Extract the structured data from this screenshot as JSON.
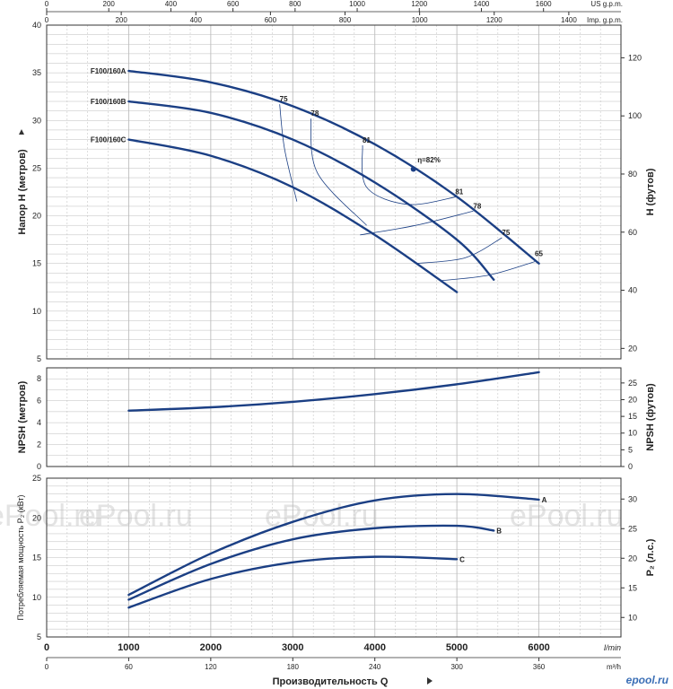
{
  "chart_data": [
    {
      "id": "head",
      "type": "line",
      "ylabel": "Напор Н (метров)",
      "y2label": "Н (футов)",
      "ylim": [
        5,
        40
      ],
      "y_ticks": [
        5,
        10,
        15,
        20,
        25,
        30,
        35,
        40
      ],
      "y2_ticks": [
        20,
        40,
        60,
        80,
        100,
        120
      ],
      "top_axes": {
        "us_label": "US g.p.m.",
        "us_ticks": [
          0,
          200,
          400,
          600,
          800,
          1000,
          1200,
          1400,
          1600
        ],
        "imp_label": "Imp. g.p.m.",
        "imp_ticks": [
          0,
          200,
          400,
          600,
          800,
          1000,
          1200,
          1400
        ]
      },
      "series": [
        {
          "name": "F100/160A",
          "x": [
            1000,
            2000,
            3000,
            4000,
            5000,
            6000
          ],
          "y": [
            35.2,
            34,
            31.5,
            27.5,
            22,
            15
          ]
        },
        {
          "name": "F100/160B",
          "x": [
            1000,
            2000,
            3000,
            4000,
            5000,
            5450
          ],
          "y": [
            32,
            30.8,
            28,
            23.5,
            17.5,
            13.3
          ]
        },
        {
          "name": "F100/160C",
          "x": [
            1000,
            2000,
            3000,
            4000,
            5000
          ],
          "y": [
            28,
            26.3,
            23,
            18,
            12
          ]
        }
      ],
      "efficiency_labels": [
        {
          "text": "75",
          "x": 2840,
          "y": 31.7
        },
        {
          "text": "78",
          "x": 3220,
          "y": 30.2
        },
        {
          "text": "81",
          "x": 3850,
          "y": 27.4
        },
        {
          "text": "η=82%",
          "x": 4520,
          "y": 25.3
        },
        {
          "text": "81",
          "x": 4980,
          "y": 22
        },
        {
          "text": "78",
          "x": 5200,
          "y": 20.5
        },
        {
          "text": "75",
          "x": 5550,
          "y": 17.7
        },
        {
          "text": "65",
          "x": 5950,
          "y": 15.5
        }
      ],
      "bep": {
        "x": 4470,
        "y": 24.9
      }
    },
    {
      "id": "npsh",
      "type": "line",
      "ylabel": "NPSH (метров)",
      "y2label": "NPSH (футов)",
      "ylim": [
        0,
        9
      ],
      "y_ticks": [
        0,
        2,
        4,
        6,
        8
      ],
      "y2_ticks": [
        0,
        5,
        10,
        15,
        20,
        25
      ],
      "series": [
        {
          "name": "",
          "x": [
            1000,
            2000,
            3000,
            4000,
            5000,
            6000
          ],
          "y": [
            5.1,
            5.4,
            5.9,
            6.6,
            7.5,
            8.6
          ]
        }
      ]
    },
    {
      "id": "power",
      "type": "line",
      "ylabel": "Потребляемая мощность P₂ (кВт)",
      "y2label": "P₂ (л.с.)",
      "ylim": [
        5,
        25
      ],
      "y_ticks": [
        5,
        10,
        15,
        20,
        25
      ],
      "y2_ticks": [
        10,
        15,
        20,
        25,
        30
      ],
      "xlabel": "Производительность Q",
      "x_ticks": [
        0,
        1000,
        2000,
        3000,
        4000,
        5000,
        6000
      ],
      "x_unit": "l/min",
      "x2_ticks": [
        0,
        60,
        120,
        180,
        240,
        300,
        360
      ],
      "x2_unit": "m³/h",
      "series": [
        {
          "name": "A",
          "x": [
            1000,
            2000,
            3000,
            4000,
            5000,
            6000
          ],
          "y": [
            10.3,
            15.5,
            19.5,
            22.2,
            23,
            22.3
          ]
        },
        {
          "name": "B",
          "x": [
            1000,
            2000,
            3000,
            4000,
            5000,
            5450
          ],
          "y": [
            9.7,
            14.2,
            17.3,
            18.7,
            19,
            18.4
          ]
        },
        {
          "name": "C",
          "x": [
            1000,
            2000,
            3000,
            4000,
            5000
          ],
          "y": [
            8.7,
            12.3,
            14.4,
            15.1,
            14.8
          ]
        }
      ]
    }
  ],
  "watermarks": [
    "ePool.ru",
    "ePool.ru",
    "ePool.ru",
    "ePool.ru"
  ],
  "logo": "epool.ru",
  "colors": {
    "curve": "#1b3f84",
    "grid": "#bdbdbd",
    "frame": "#333333",
    "bep": "#1b3f84"
  }
}
